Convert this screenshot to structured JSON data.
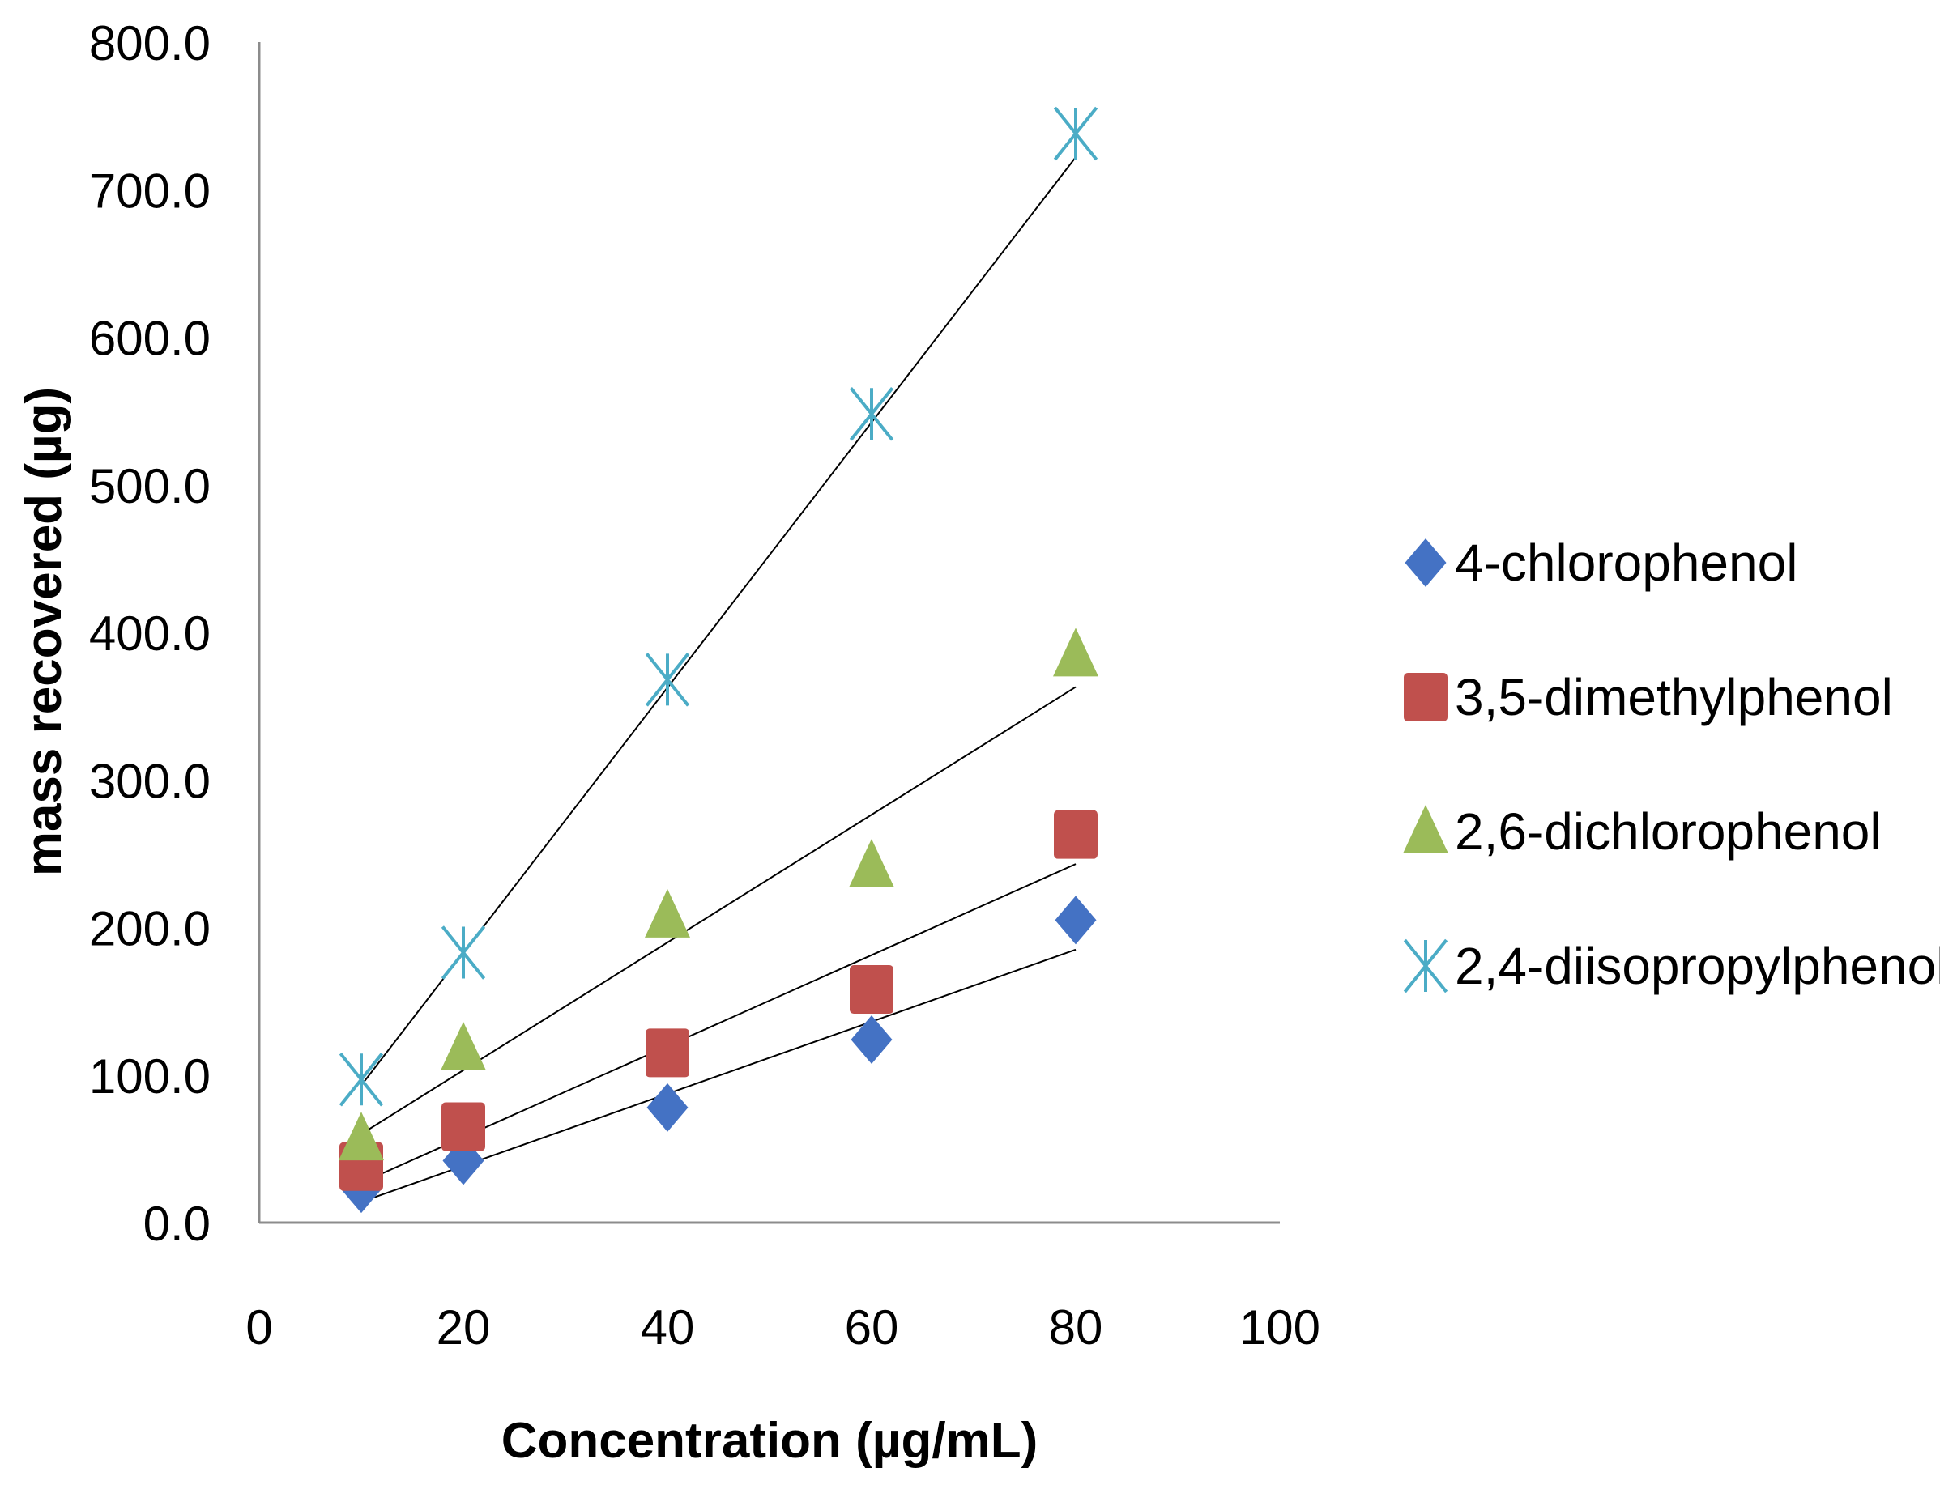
{
  "chart_data": {
    "type": "scatter",
    "title": "",
    "xlabel": "Concentration (µg/mL)",
    "ylabel": "mass recovered (µg)",
    "xlim": [
      0,
      100
    ],
    "ylim": [
      0,
      800
    ],
    "x_ticks": [
      0,
      20,
      40,
      60,
      80,
      100
    ],
    "x_tick_labels": [
      "0",
      "20",
      "40",
      "60",
      "80",
      "100"
    ],
    "y_ticks": [
      0,
      100,
      200,
      300,
      400,
      500,
      600,
      700,
      800
    ],
    "y_tick_labels": [
      "0.0",
      "100.0",
      "200.0",
      "300.0",
      "400.0",
      "500.0",
      "600.0",
      "700.0",
      "800.0"
    ],
    "grid": false,
    "legend_position": "right",
    "x": [
      10,
      20,
      40,
      60,
      80
    ],
    "series": [
      {
        "name": "4-chlorophenol",
        "marker": "diamond",
        "color": "#4472C4",
        "values": [
          23,
          42,
          78,
          124,
          205
        ],
        "trendline": [
          14,
          38,
          87,
          136,
          185
        ]
      },
      {
        "name": "3,5-dimethylphenol",
        "marker": "square",
        "color": "#C0504D",
        "values": [
          38,
          65,
          115,
          158,
          263
        ],
        "trendline": [
          27,
          58,
          120,
          182,
          243
        ]
      },
      {
        "name": "2,6-dichlorophenol",
        "marker": "triangle",
        "color": "#9BBB59",
        "values": [
          57,
          118,
          208,
          242,
          385
        ],
        "trendline": [
          60,
          104,
          190,
          277,
          363
        ]
      },
      {
        "name": "2,4-diisopropylphenol",
        "marker": "asterisk",
        "color": "#4BACC6",
        "values": [
          97,
          183,
          368,
          548,
          738
        ],
        "trendline": [
          93,
          183,
          363,
          543,
          722
        ]
      }
    ]
  }
}
